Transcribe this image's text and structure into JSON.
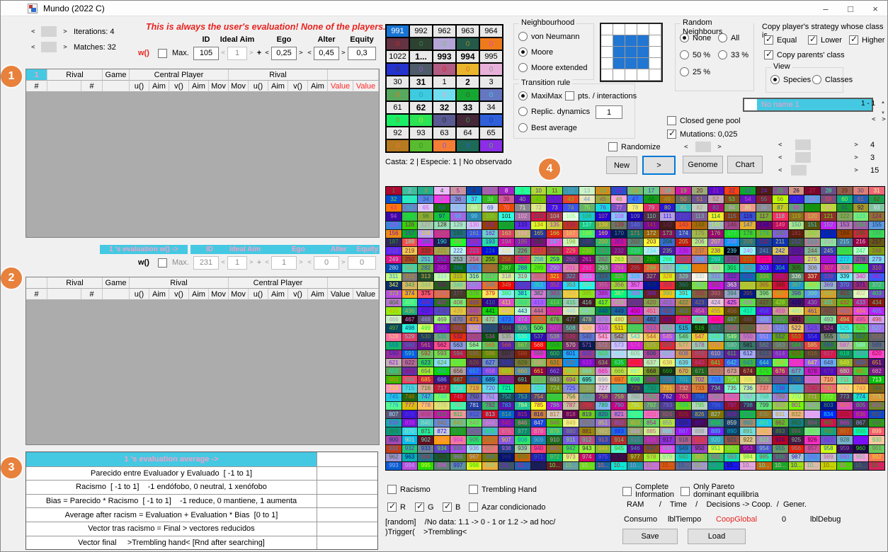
{
  "window": {
    "title": "Mundo (2022 C)",
    "minimize": "–",
    "maximize": "□",
    "close": "×"
  },
  "badges": {
    "b1": "1",
    "b2": "2",
    "b3": "3",
    "b4": "4"
  },
  "panel1": {
    "iterations": "Iterations: 4",
    "matches": "Matches: 32",
    "warning": "This is always the user's evaluation! None of the players.",
    "w_label": "w()",
    "max_label": "Max.",
    "plus": "+",
    "headers": {
      "id": "ID",
      "ideal_aim": "Ideal Aim",
      "ego": "Ego",
      "alter": "Alter",
      "equity": "Equity"
    },
    "values": {
      "id": "105",
      "ideal_aim": "1",
      "ego": "0,25",
      "alter": "0,45",
      "equity": "0,3"
    }
  },
  "panel2": {
    "bar_left": "1 's evaluation w() ->",
    "headers": {
      "id": "ID",
      "ideal_aim": "Ideal Aim",
      "ego": "Ego",
      "alter": "Alter",
      "equity": "Equity"
    },
    "w_label": "w()",
    "max_label": "Max.",
    "plus": "+",
    "values": {
      "id": "231",
      "ideal_aim": "1",
      "ego": "1",
      "alter": "0",
      "equity": "0"
    }
  },
  "tables": {
    "widths": [
      30,
      48,
      30,
      38,
      28,
      28,
      28,
      28,
      28,
      28,
      28,
      28,
      28,
      28,
      36,
      36
    ],
    "sub": [
      "#",
      "",
      "#",
      "",
      "u()",
      "Aim",
      "v()",
      "Aim",
      "Mov",
      "Mov",
      "u()",
      "Aim",
      "v()",
      "Aim",
      "Value",
      "Value"
    ],
    "table1_groups": [
      {
        "label": "1",
        "span": 1,
        "cyan": true
      },
      {
        "label": "Rival",
        "span": 2
      },
      {
        "label": "Game",
        "span": 1
      },
      {
        "label": "Central Player",
        "span": 5
      },
      {
        "label": "Rival",
        "span": 5
      },
      {
        "label": "",
        "span": 2
      }
    ],
    "table2_groups": [
      {
        "label": "",
        "span": 1
      },
      {
        "label": "Rival",
        "span": 2
      },
      {
        "label": "Game",
        "span": 1
      },
      {
        "label": "Rival",
        "span": 5
      },
      {
        "label": "Central Player",
        "span": 5
      },
      {
        "label": "",
        "span": 2
      }
    ]
  },
  "panel3": {
    "rows": [
      {
        "label": "1 's evaluation average ->",
        "cyan": true
      },
      {
        "label": "Parecido entre Evaluador y Evaluado  [ -1 to 1]"
      },
      {
        "label": "Racismo  [ -1 to 1]    -1 endófobo, 0 neutral, 1 xenófobo"
      },
      {
        "label": "Bias = Parecido * Racismo  [ -1 to 1]    -1 reduce, 0 mantiene, 1 aumenta"
      },
      {
        "label": "Average after racism = Evaluation + Evaluation * Bias  [0 to 1]"
      },
      {
        "label": "Vector tras racismo = Final > vectores reducidos"
      },
      {
        "label": "Vector final     >Trembling hand< [Rnd after searching]"
      }
    ]
  },
  "casta": {
    "caption": "Casta: 2 | Especie: 1 | No observado",
    "zero": "0",
    "rows": [
      [
        {
          "n": "991",
          "sel": true,
          "c": "#653241",
          "z": "#b03030"
        },
        {
          "n": "992",
          "c": "#2d4232",
          "z": "#3f7d46"
        },
        {
          "n": "962",
          "c": "#b3a6d6",
          "z": "#84b87c"
        },
        {
          "n": "963",
          "c": "#25594a",
          "z": "#8f8f2e"
        },
        {
          "n": "964",
          "c": "#ef7a1c",
          "z": "#e843b8"
        }
      ],
      [
        {
          "n": "1022",
          "c": "#2433cd",
          "z": "#343434"
        },
        {
          "n": "1...",
          "b": true,
          "c": "#4e5b68",
          "z": "#8a5ad2"
        },
        {
          "n": "993",
          "b": true,
          "c": "#b25c82",
          "z": "#d42a2a"
        },
        {
          "n": "994",
          "b": true,
          "c": "#e9b52c",
          "z": "#e07820"
        },
        {
          "n": "995",
          "c": "#e7b0d9",
          "z": "#9a9a9a"
        }
      ],
      [
        {
          "n": "30",
          "c": "#57a95e",
          "z": "#e07820"
        },
        {
          "n": "31",
          "b": true,
          "c": "#3ecbe0",
          "z": "#28a0b8"
        },
        {
          "n": "1",
          "c": "#6fdff0",
          "z": "#efa0d0"
        },
        {
          "n": "2",
          "b": true,
          "c": "#16a733",
          "z": "#2a6a2a"
        },
        {
          "n": "3",
          "c": "#6577c1",
          "z": "#40c8d8"
        }
      ],
      [
        {
          "n": "61",
          "c": "#19ee66",
          "z": "#8f8f2e"
        },
        {
          "n": "62",
          "b": true,
          "c": "#2ae455",
          "z": "#bfdf30"
        },
        {
          "n": "32",
          "b": true,
          "c": "#595a91",
          "z": "#2a2a4a"
        },
        {
          "n": "33",
          "b": true,
          "c": "#452739",
          "z": "#3f8f3f"
        },
        {
          "n": "34",
          "c": "#2f5fd9",
          "z": "#2038b0"
        }
      ],
      [
        {
          "n": "92",
          "c": "#b67a20",
          "z": "#e08030"
        },
        {
          "n": "93",
          "c": "#58bc2e",
          "z": "#3f8f2f"
        },
        {
          "n": "63",
          "c": "#f57d35",
          "z": "#8a5ad2"
        },
        {
          "n": "64",
          "c": "#1d6a58",
          "z": "#3060c0"
        },
        {
          "n": "65",
          "c": "#8b2ee5",
          "z": "#3fbf3f"
        }
      ]
    ]
  },
  "neighbourhood": {
    "title": "Neighbourhood",
    "options": [
      {
        "label": "von Neumann",
        "selected": false
      },
      {
        "label": "Moore",
        "selected": true
      },
      {
        "label": "Moore extended",
        "selected": false
      }
    ]
  },
  "transition": {
    "title": "Transition rule",
    "maximax": {
      "label": "MaxiMax",
      "selected": true
    },
    "pts": {
      "label": "pts. / interactions",
      "checked": false
    },
    "replic": {
      "label": "Replic. dynamics",
      "selected": false,
      "value": "1"
    },
    "best": {
      "label": "Best average",
      "selected": false
    }
  },
  "random_neighbours": {
    "title": "Random Neighbours",
    "options": [
      {
        "label": "None",
        "selected": true
      },
      {
        "label": "All",
        "selected": false
      },
      {
        "label": "50 %",
        "selected": false
      },
      {
        "label": "33 %",
        "selected": false
      },
      {
        "label": "25 %",
        "selected": false
      }
    ]
  },
  "copy_strategy": {
    "title": "Copy player's strategy whose class is...",
    "equal": {
      "label": "Equal",
      "checked": true
    },
    "lower": {
      "label": "Lower",
      "checked": true
    },
    "higher": {
      "label": "Higher",
      "checked": true
    },
    "parents": {
      "label": "Copy parents' class",
      "checked": true
    }
  },
  "view": {
    "title": "View",
    "species": {
      "label": "Species",
      "selected": true
    },
    "classes": {
      "label": "Classes",
      "selected": false
    }
  },
  "gene": {
    "name_value": "No name 1",
    "range": "1 - 1",
    "closed": {
      "label": "Closed gene pool",
      "checked": false
    },
    "mutations": {
      "label": "Mutations: 0,025",
      "checked": true
    },
    "sliders": [
      {
        "value": "4"
      },
      {
        "value": "3"
      },
      {
        "value": "15"
      }
    ]
  },
  "randomize": {
    "label": "Randomize",
    "checked": false
  },
  "buttons": {
    "new": "New",
    "step": ">",
    "genome": "Genome",
    "chart": "Chart",
    "save": "Save",
    "load": "Load"
  },
  "world": {
    "columns": 31,
    "rows": 33,
    "count": 1023,
    "first": 1,
    "truncate_from": 1000,
    "truncated_label": "10...",
    "seed": 777
  },
  "bottom": {
    "racismo": {
      "label": "Racismo",
      "checked": false
    },
    "trembling": {
      "label": "Trembling Hand",
      "checked": false
    },
    "r": {
      "label": "R",
      "checked": true
    },
    "g": {
      "label": "G",
      "checked": true
    },
    "bb": {
      "label": "B",
      "checked": true
    },
    "azar": {
      "label": "Azar condicionado",
      "checked": false
    },
    "random_note1": "[random]    /No data: 1.1 -> 0 - 1 or 1.2 -> ad hoc/",
    "random_note2": ")Trigger(    >Trembling<",
    "complete": {
      "label": "Complete\nInformation",
      "checked": false
    },
    "pareto": {
      "label": "Only Pareto\ndominant equilibria",
      "checked": false
    },
    "stats_line": "RAM       /    Time    /    Decisions -> Coop.  /  Gener.",
    "consumo": "Consumo",
    "tiempo": "lblTiempo",
    "coop": "CoopGlobal",
    "coop_value": "0",
    "debug": "lblDebug"
  }
}
